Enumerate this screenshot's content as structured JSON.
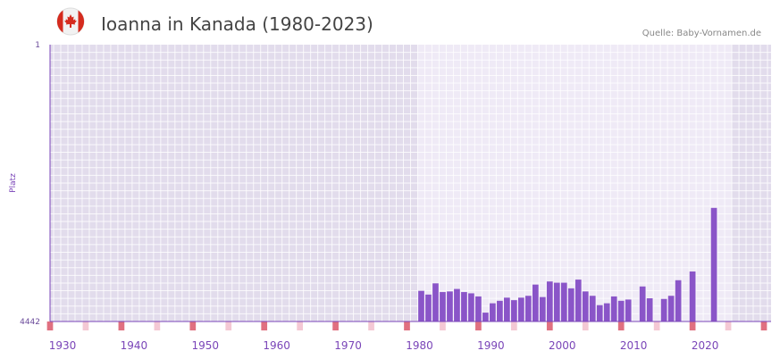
{
  "header": {
    "title": "Ioanna in Kanada (1980-2023)",
    "source": "Quelle: Baby-Vornamen.de",
    "flag_icon": "canada-flag-icon"
  },
  "colors": {
    "bar": "#8a55c8",
    "axis": "#7a45b8",
    "marker_decade": "#e07080",
    "marker_five": "#f4c8d4",
    "bg_outside": "#e2dcec",
    "bg_inside": "#efeaf6",
    "grid": "#ffffff"
  },
  "chart_data": {
    "type": "bar",
    "title": "Ioanna in Kanada (1980-2023)",
    "xlabel": "",
    "ylabel": "Platz",
    "y_axis_inverted": true,
    "ylim": [
      1,
      4442
    ],
    "ytick_labels": [
      "1",
      "4442"
    ],
    "xlim": [
      1928,
      2029
    ],
    "xtick_labels": [
      "1930",
      "1940",
      "1950",
      "1960",
      "1970",
      "1980",
      "1990",
      "2000",
      "2010",
      "2020"
    ],
    "highlight_range": [
      1980,
      2023
    ],
    "series": [
      {
        "name": "Platz",
        "x": [
          1980,
          1981,
          1982,
          1983,
          1984,
          1985,
          1986,
          1987,
          1988,
          1989,
          1990,
          1991,
          1992,
          1993,
          1994,
          1995,
          1996,
          1997,
          1998,
          1999,
          2000,
          2001,
          2002,
          2003,
          2004,
          2005,
          2006,
          2007,
          2008,
          2009,
          2010,
          2011,
          2012,
          2013,
          2014,
          2015,
          2016,
          2017,
          2018,
          2019,
          2020,
          2021,
          2022,
          2023
        ],
        "values": [
          3950,
          4010,
          3830,
          3970,
          3960,
          3920,
          3970,
          3990,
          4040,
          4300,
          4150,
          4110,
          4060,
          4100,
          4060,
          4030,
          3850,
          4050,
          3800,
          3820,
          3820,
          3910,
          3770,
          3960,
          4030,
          4180,
          4150,
          4040,
          4110,
          4090,
          null,
          3880,
          4070,
          null,
          4080,
          4030,
          3780,
          null,
          3640,
          null,
          null,
          2620,
          null,
          null
        ]
      }
    ]
  }
}
